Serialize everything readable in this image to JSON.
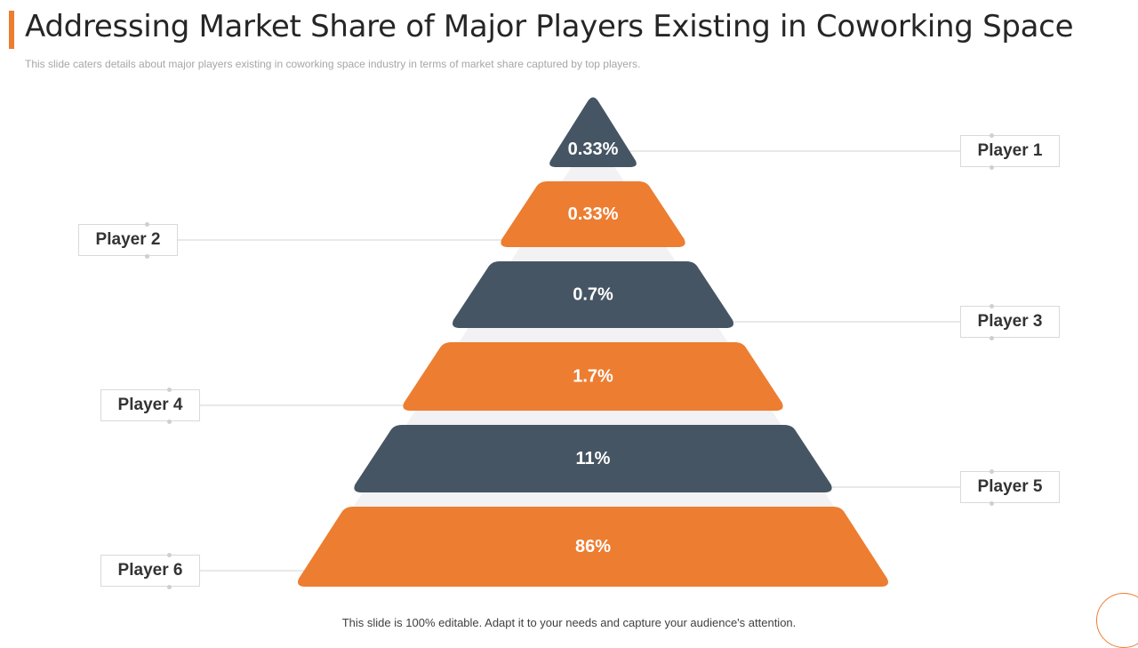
{
  "title": "Addressing Market Share of Major Players Existing in Coworking Space",
  "subtitle": "This slide caters details about major players existing in coworking space industry in terms of market share captured by top players.",
  "footer": "This slide is 100% editable. Adapt it to your needs and capture your audience's attention.",
  "colors": {
    "dark": "#455563",
    "orange": "#ED7D31",
    "accent": "#ED7D31"
  },
  "tiers": [
    {
      "player": "Player 1",
      "value": "0.33%",
      "color": "dark",
      "side": "right"
    },
    {
      "player": "Player 2",
      "value": "0.33%",
      "color": "orange",
      "side": "left"
    },
    {
      "player": "Player 3",
      "value": "0.7%",
      "color": "dark",
      "side": "right"
    },
    {
      "player": "Player 4",
      "value": "1.7%",
      "color": "orange",
      "side": "left"
    },
    {
      "player": "Player 5",
      "value": "11%",
      "color": "dark",
      "side": "right"
    },
    {
      "player": "Player 6",
      "value": "86%",
      "color": "orange",
      "side": "left"
    }
  ]
}
